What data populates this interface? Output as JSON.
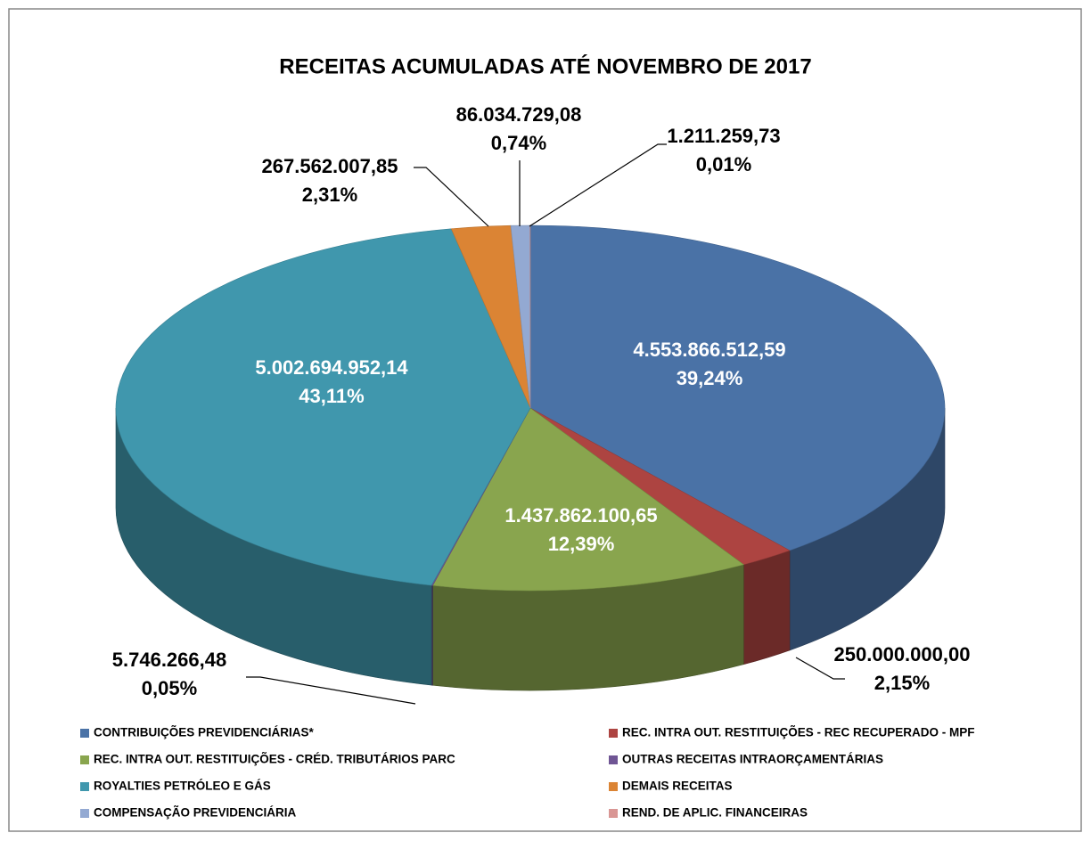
{
  "chart_data": {
    "type": "pie3d",
    "title": "RECEITAS ACUMULADAS ATÉ NOVEMBRO DE 2017",
    "categories": [
      "CONTRIBUIÇÕES PREVIDENCIÁRIAS*",
      "REC. INTRA OUT. RESTITUIÇÕES - REC RECUPERADO - MPF",
      "REC. INTRA OUT. RESTITUIÇÕES - CRÉD. TRIBUTÁRIOS PARC",
      "OUTRAS RECEITAS INTRAORÇAMENTÁRIAS",
      "ROYALTIES PETRÓLEO E GÁS",
      "DEMAIS RECEITAS",
      "COMPENSAÇÃO PREVIDENCIÁRIA",
      "REND. DE APLIC. FINANCEIRAS"
    ],
    "values": [
      4553866512.59,
      250000000.0,
      1437862100.65,
      5746266.48,
      5002694952.14,
      267562007.85,
      86034729.08,
      1211259.73
    ],
    "value_labels": [
      "4.553.866.512,59",
      "250.000.000,00",
      "1.437.862.100,65",
      "5.746.266,48",
      "5.002.694.952,14",
      "267.562.007,85",
      "86.034.729,08",
      "1.211.259,73"
    ],
    "percentages": [
      39.24,
      2.15,
      12.39,
      0.05,
      43.11,
      2.31,
      0.74,
      0.01
    ],
    "percentage_labels": [
      "39,24%",
      "2,15%",
      "12,39%",
      "0,05%",
      "43,11%",
      "2,31%",
      "0,74%",
      "0,01%"
    ],
    "colors": [
      "#4a72a6",
      "#ad4441",
      "#89a54e",
      "#6f5594",
      "#4097ad",
      "#db8434",
      "#93a9d2",
      "#d99694"
    ],
    "legend": "bottom"
  }
}
